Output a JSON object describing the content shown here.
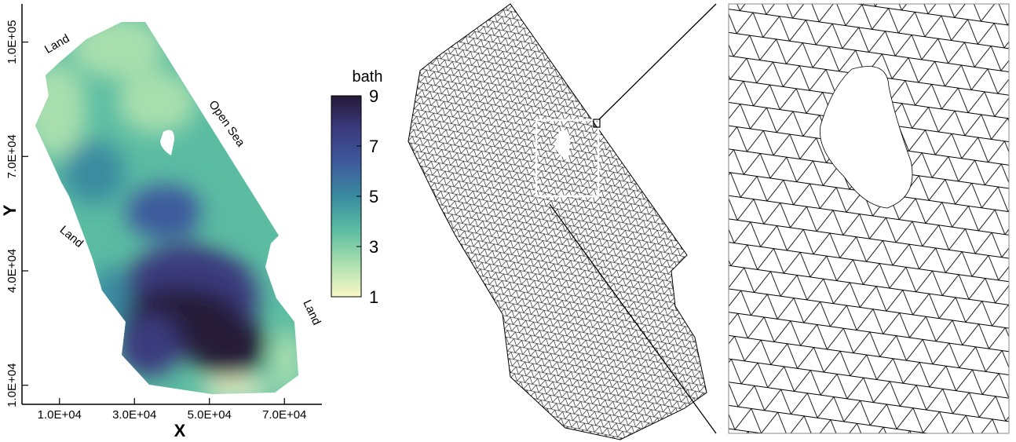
{
  "chart_data": {
    "type": "contour",
    "xlabel": "X",
    "ylabel": "Y",
    "xlim": [
      0,
      80000
    ],
    "ylim": [
      5000,
      110000
    ],
    "xticks": [
      {
        "value": 10000,
        "label": "1.0E+04"
      },
      {
        "value": 30000,
        "label": "3.0E+04"
      },
      {
        "value": 50000,
        "label": "5.0E+04"
      },
      {
        "value": 70000,
        "label": "7.0E+04"
      }
    ],
    "yticks": [
      {
        "value": 10000,
        "label": "1.0E+04"
      },
      {
        "value": 40000,
        "label": "4.0E+04"
      },
      {
        "value": 70000,
        "label": "7.0E+04"
      },
      {
        "value": 100000,
        "label": "1.0E+05"
      }
    ],
    "colorbar": {
      "title": "bath",
      "lim": [
        1,
        9
      ],
      "ticks": [
        1,
        3,
        5,
        7,
        9
      ],
      "colors": [
        "#fbf8c8",
        "#a9dfae",
        "#5bbca2",
        "#3a8ba0",
        "#3d5a9c",
        "#3b3a7e",
        "#261a38"
      ]
    },
    "annotations": [
      "Land",
      "Open Sea",
      "Land",
      "Land"
    ]
  }
}
